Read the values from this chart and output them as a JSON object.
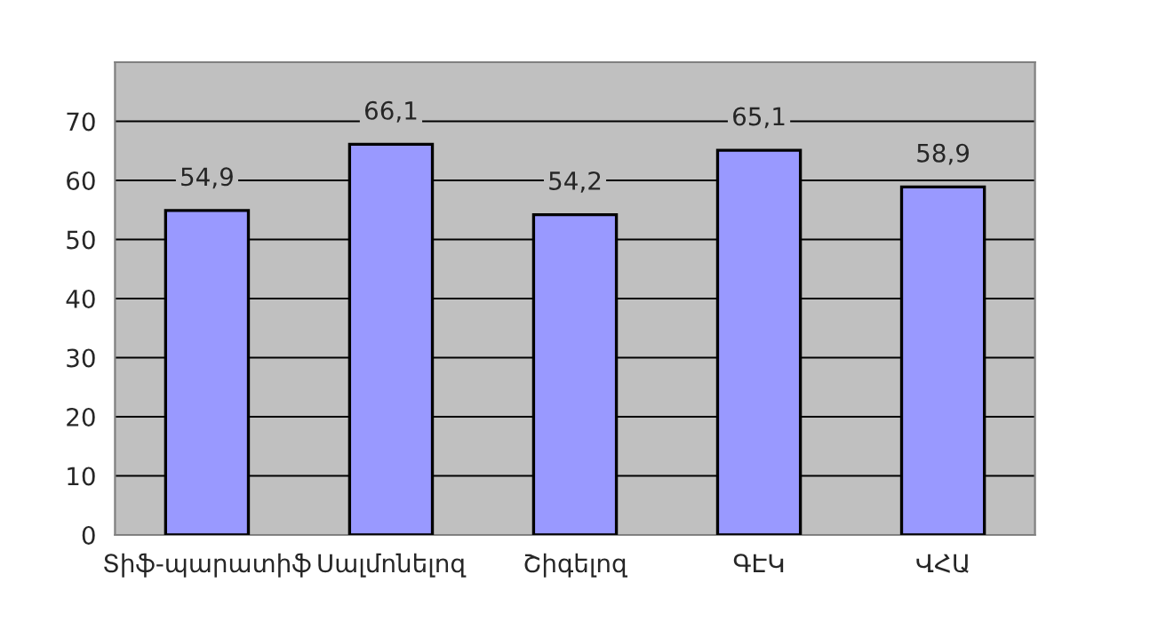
{
  "chart_data": {
    "type": "bar",
    "categories": [
      "Տիֆ-պարատիֆ",
      "Սալմոնելոզ",
      "Շիգելոզ",
      "ԳԷԿ",
      "ՎՀԱ"
    ],
    "values": [
      54.9,
      66.1,
      54.2,
      65.1,
      58.9
    ],
    "value_labels": [
      "54,9",
      "66,1",
      "54,2",
      "65,1",
      "58,9"
    ],
    "color": "#9999ff",
    "ylim": [
      0,
      80
    ],
    "yticks": [
      0,
      10,
      20,
      30,
      40,
      50,
      60,
      70
    ],
    "grid": "y",
    "legend": false
  }
}
